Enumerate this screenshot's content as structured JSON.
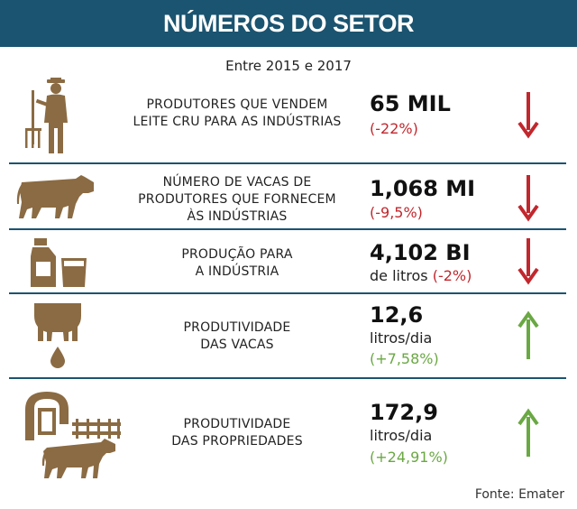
{
  "header": {
    "title": "NÚMEROS DO SETOR"
  },
  "subtitle": "Entre 2015 e 2017",
  "colors": {
    "header_bg": "#1b5470",
    "icon": "#8b6b43",
    "down": "#c1272d",
    "up": "#6aa843"
  },
  "rows": [
    {
      "icon": "farmer-icon",
      "label_lines": [
        "PRODUTORES QUE VENDEM",
        "LEITE CRU PARA AS INDÚSTRIAS"
      ],
      "value": "65 MIL",
      "unit": "",
      "change": "(-22%)",
      "trend": "down"
    },
    {
      "icon": "cow-icon",
      "label_lines": [
        "NÚMERO DE VACAS DE",
        "PRODUTORES QUE FORNECEM",
        "ÀS INDÚSTRIAS"
      ],
      "value": "1,068 MI",
      "unit": "",
      "change": "(-9,5%)",
      "trend": "down"
    },
    {
      "icon": "milk-carton-icon",
      "label_lines": [
        "PRODUÇÃO PARA",
        "A INDÚSTRIA"
      ],
      "value": "4,102 BI",
      "unit": "de litros",
      "change": "(-2%)",
      "trend": "down"
    },
    {
      "icon": "udder-icon",
      "label_lines": [
        "PRODUTIVIDADE",
        "DAS VACAS"
      ],
      "value": "12,6",
      "unit": "litros/dia",
      "change": "(+7,58%)",
      "trend": "up"
    },
    {
      "icon": "barn-cow-icon",
      "label_lines": [
        "PRODUTIVIDADE",
        "DAS PROPRIEDADES"
      ],
      "value": "172,9",
      "unit": "litros/dia",
      "change": "(+24,91%)",
      "trend": "up"
    }
  ],
  "source": "Fonte: Emater"
}
